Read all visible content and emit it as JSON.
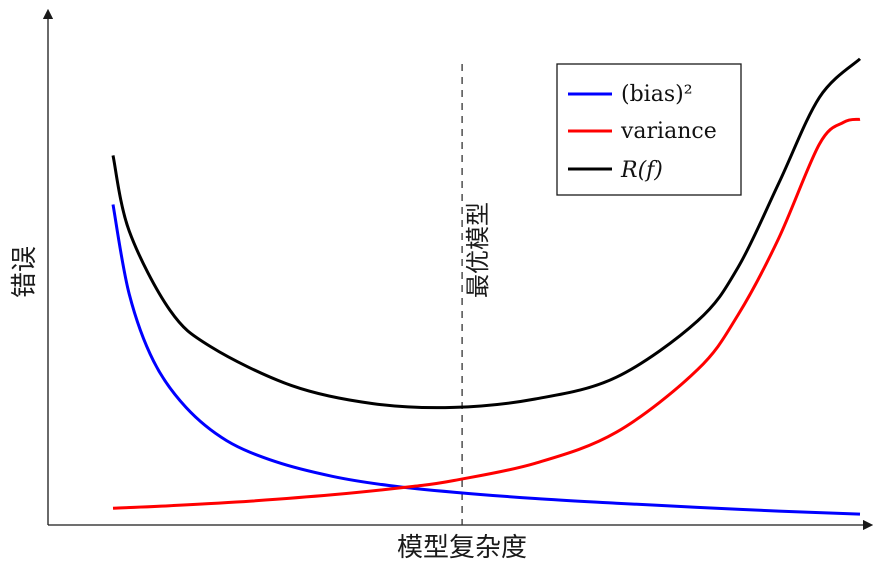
{
  "chart_data": {
    "type": "line",
    "xlabel": "模型复杂度",
    "ylabel": "错误",
    "xlim": [
      0,
      10
    ],
    "ylim": [
      0,
      10
    ],
    "grid": false,
    "legend_position": "top-right",
    "annotation": {
      "label": "最优模型",
      "x": 5.1,
      "style": "dashed-vertical-line"
    },
    "series": [
      {
        "name": "(bias)²",
        "color": "#0000ff",
        "x": [
          0.8,
          1.0,
          1.3,
          1.7,
          2.2,
          2.8,
          3.5,
          4.2,
          5.0,
          6.0,
          7.0,
          8.0,
          9.0,
          10.0
        ],
        "y": [
          7.63,
          5.5,
          3.9,
          2.8,
          2.01,
          1.51,
          1.16,
          0.94,
          0.78,
          0.63,
          0.52,
          0.42,
          0.33,
          0.26
        ]
      },
      {
        "name": "variance",
        "color": "#ff0000",
        "x": [
          0.8,
          1.5,
          2.5,
          3.5,
          4.5,
          5.0,
          6.0,
          7.0,
          8.0,
          8.5,
          9.0,
          9.5,
          9.8,
          10.0
        ],
        "y": [
          0.4,
          0.46,
          0.57,
          0.72,
          0.92,
          1.06,
          1.47,
          2.21,
          3.7,
          5.01,
          6.83,
          9.07,
          9.59,
          9.66
        ]
      },
      {
        "name": "R(f)",
        "color": "#000000",
        "x": [
          0.8,
          1.0,
          1.5,
          2.0,
          3.0,
          4.0,
          5.0,
          6.0,
          7.0,
          8.0,
          8.5,
          9.0,
          9.5,
          10.0
        ],
        "y": [
          8.8,
          7.0,
          5.12,
          4.25,
          3.32,
          2.89,
          2.8,
          3.0,
          3.52,
          4.86,
          6.14,
          8.14,
          10.18,
          11.1
        ]
      }
    ]
  }
}
